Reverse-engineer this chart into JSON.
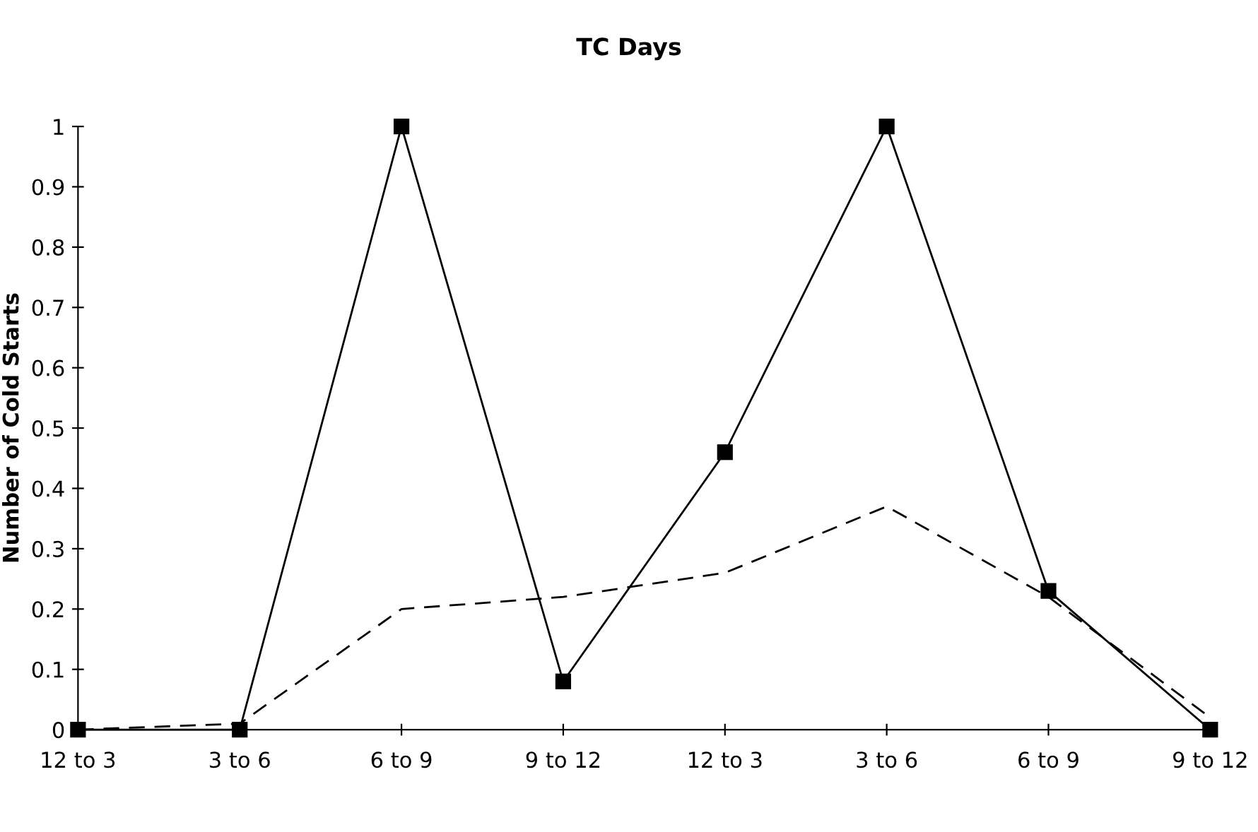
{
  "chart_data": {
    "type": "line",
    "title": "TC Days",
    "ylabel": "Number of Cold Starts",
    "categories": [
      "12 to 3",
      "3 to 6",
      "6 to 9",
      "9 to 12",
      "12 to 3",
      "3 to 6",
      "6 to 9",
      "9 to 12"
    ],
    "series": [
      {
        "color": "#000000",
        "marker": "square",
        "line_style": "solid",
        "values": [
          0,
          0,
          1,
          0.08,
          0.46,
          1,
          0.23,
          0
        ]
      },
      {
        "color": "#000000",
        "marker": "none",
        "line_style": "dashed",
        "values": [
          0,
          0.01,
          0.2,
          0.22,
          0.26,
          0.37,
          0.22,
          0.02
        ]
      }
    ],
    "ylim": [
      0,
      1
    ],
    "yticks": [
      0,
      0.1,
      0.2,
      0.3,
      0.4,
      0.5,
      0.6,
      0.7,
      0.8,
      0.9,
      1
    ],
    "grid": false,
    "legend": false
  }
}
